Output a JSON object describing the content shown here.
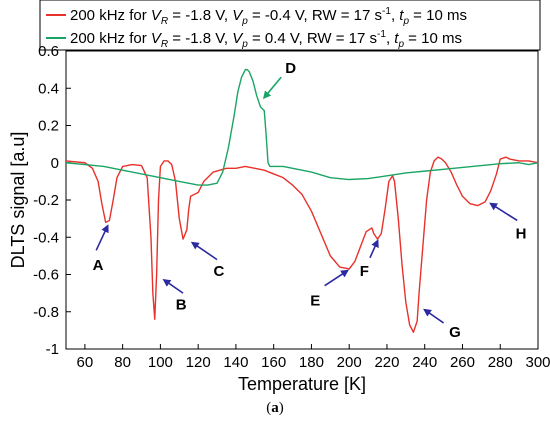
{
  "chart_data": {
    "type": "line",
    "xlabel": "Temperature [K]",
    "ylabel": "DLTS signal [a.u]",
    "xlim": [
      50,
      300
    ],
    "ylim": [
      -1,
      0.6
    ],
    "xticks": [
      60,
      80,
      100,
      120,
      140,
      160,
      180,
      200,
      220,
      240,
      260,
      280,
      300
    ],
    "yticks": [
      0.6,
      0.4,
      0.2,
      0,
      -0.2,
      -0.4,
      -0.6,
      -0.8,
      -1
    ],
    "ytick_labels": [
      "0.6",
      "0.4",
      "0.2",
      "0",
      "-0.2",
      "-0.4",
      "-0.6",
      "-0.8",
      "-1"
    ],
    "legend_position": "top",
    "series": [
      {
        "name": "200 kHz for VR = -1.8 V, Vp = -0.4 V, RW = 17 s-1, tp = 10 ms",
        "legend": {
          "a": "200 kHz for ",
          "vr_sub": "R",
          "b": " = -1.8 V, ",
          "vp_sub": "p",
          "c": " = -0.4 V, RW = 17 s",
          "exp": "-1",
          "d": ", ",
          "tp_sub": "p",
          "e": " = 10 ms"
        },
        "color": "#e8312a",
        "x": [
          50,
          60,
          64,
          67,
          69,
          71,
          73,
          75,
          77,
          80,
          85,
          90,
          93,
          95,
          96,
          97,
          98,
          99,
          100,
          102,
          104,
          106,
          108,
          110,
          112,
          114,
          115,
          116,
          118,
          120,
          123,
          128,
          135,
          140,
          145,
          150,
          155,
          160,
          165,
          170,
          175,
          180,
          185,
          190,
          195,
          200,
          203,
          206,
          209,
          212,
          213,
          215,
          217,
          219,
          221,
          223,
          224,
          226,
          228,
          230,
          232,
          234,
          236,
          237,
          239,
          241,
          243,
          245,
          247,
          249,
          251,
          254,
          257,
          260,
          264,
          268,
          272,
          275,
          278,
          280,
          283,
          285,
          290,
          295,
          300
        ],
        "y": [
          0.01,
          0.0,
          -0.03,
          -0.1,
          -0.22,
          -0.32,
          -0.31,
          -0.2,
          -0.08,
          -0.02,
          -0.01,
          -0.015,
          -0.08,
          -0.4,
          -0.7,
          -0.84,
          -0.6,
          -0.2,
          -0.02,
          0.01,
          0.01,
          -0.01,
          -0.1,
          -0.3,
          -0.41,
          -0.36,
          -0.25,
          -0.18,
          -0.17,
          -0.16,
          -0.1,
          -0.05,
          -0.03,
          -0.03,
          -0.02,
          -0.03,
          -0.04,
          -0.06,
          -0.08,
          -0.12,
          -0.17,
          -0.26,
          -0.38,
          -0.5,
          -0.56,
          -0.57,
          -0.53,
          -0.45,
          -0.37,
          -0.35,
          -0.38,
          -0.41,
          -0.38,
          -0.25,
          -0.1,
          -0.07,
          -0.1,
          -0.3,
          -0.55,
          -0.75,
          -0.87,
          -0.91,
          -0.85,
          -0.7,
          -0.45,
          -0.2,
          -0.05,
          0.01,
          0.03,
          0.02,
          0.0,
          -0.05,
          -0.12,
          -0.18,
          -0.22,
          -0.23,
          -0.21,
          -0.15,
          -0.06,
          0.02,
          0.03,
          0.02,
          0.01,
          0.01,
          0.0
        ]
      },
      {
        "name": "200 kHz for VR = -1.8 V, Vp = 0.4 V, RW = 17 s-1, tp = 10 ms",
        "legend": {
          "a": "200 kHz for ",
          "vr_sub": "R",
          "b": " = -1.8 V, ",
          "vp_sub": "p",
          "c": " = 0.4 V, RW = 17 s",
          "exp": "-1",
          "d": ", ",
          "tp_sub": "p",
          "e": " = 10 ms"
        },
        "color": "#1aa566",
        "x": [
          50,
          60,
          70,
          80,
          90,
          100,
          110,
          120,
          125,
          130,
          133,
          136,
          139,
          141,
          143,
          145,
          146,
          147,
          149,
          151,
          153,
          155,
          156,
          157,
          158,
          160,
          165,
          170,
          180,
          190,
          200,
          210,
          220,
          230,
          240,
          250,
          260,
          270,
          280,
          290,
          295,
          300
        ],
        "y": [
          0.0,
          -0.01,
          -0.02,
          -0.04,
          -0.06,
          -0.08,
          -0.1,
          -0.12,
          -0.12,
          -0.11,
          -0.05,
          0.08,
          0.25,
          0.38,
          0.46,
          0.5,
          0.5,
          0.49,
          0.44,
          0.36,
          0.3,
          0.28,
          0.15,
          0.0,
          -0.02,
          -0.02,
          -0.02,
          -0.03,
          -0.05,
          -0.08,
          -0.09,
          -0.085,
          -0.07,
          -0.055,
          -0.045,
          -0.035,
          -0.025,
          -0.015,
          -0.005,
          0.0,
          -0.01,
          0.0
        ]
      }
    ],
    "annotations": [
      {
        "label": "A",
        "tip": [
          72,
          -0.34
        ],
        "tail": [
          66,
          -0.47
        ],
        "text_at": [
          67,
          -0.55
        ]
      },
      {
        "label": "B",
        "tip": [
          102,
          -0.63
        ],
        "tail": [
          112,
          -0.7
        ],
        "text_at": [
          111,
          -0.76
        ]
      },
      {
        "label": "C",
        "tip": [
          117,
          -0.43
        ],
        "tail": [
          130,
          -0.52
        ],
        "text_at": [
          131,
          -0.58
        ]
      },
      {
        "label": "D",
        "tip": [
          155,
          0.35
        ],
        "tail": [
          164,
          0.46
        ],
        "text_at": [
          169,
          0.51
        ]
      },
      {
        "label": "E",
        "tip": [
          199,
          -0.58
        ],
        "tail": [
          187,
          -0.66
        ],
        "text_at": [
          182,
          -0.74
        ]
      },
      {
        "label": "F",
        "tip": [
          215,
          -0.42
        ],
        "tail": [
          211,
          -0.51
        ],
        "text_at": [
          208,
          -0.58
        ]
      },
      {
        "label": "G",
        "tip": [
          240,
          -0.79
        ],
        "tail": [
          250,
          -0.86
        ],
        "text_at": [
          256,
          -0.91
        ]
      },
      {
        "label": "H",
        "tip": [
          275,
          -0.22
        ],
        "tail": [
          289,
          -0.31
        ],
        "text_at": [
          291,
          -0.38
        ]
      }
    ],
    "caption_left": "(",
    "caption_bold": "a",
    "caption_right": ")"
  }
}
